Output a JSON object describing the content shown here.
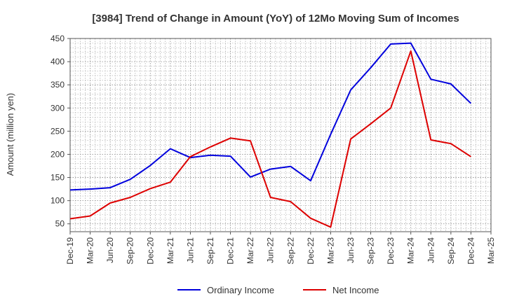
{
  "chart_data": {
    "type": "line",
    "title": "[3984]  Trend of Change in Amount (YoY) of 12Mo Moving Sum of Incomes",
    "xlabel": "",
    "ylabel": "Amount (million yen)",
    "ylim": [
      33,
      450
    ],
    "yticks": [
      50,
      100,
      150,
      200,
      250,
      300,
      350,
      400,
      450
    ],
    "x": [
      "Dec-19",
      "Mar-20",
      "Jun-20",
      "Sep-20",
      "Dec-20",
      "Mar-21",
      "Jun-21",
      "Sep-21",
      "Dec-21",
      "Mar-22",
      "Jun-22",
      "Sep-22",
      "Dec-22",
      "Mar-23",
      "Jun-23",
      "Sep-23",
      "Dec-23",
      "Mar-24",
      "Jun-24",
      "Sep-24",
      "Dec-24",
      "Mar-25"
    ],
    "grid": true,
    "legend_position": "bottom",
    "series": [
      {
        "name": "Ordinary Income",
        "color": "#0000dd",
        "values": [
          123,
          125,
          128,
          146,
          176,
          212,
          193,
          198,
          196,
          151,
          168,
          174,
          143,
          243,
          339,
          387,
          438,
          440,
          362,
          352,
          310,
          null
        ]
      },
      {
        "name": "Net Income",
        "color": "#dd0000",
        "values": [
          61,
          67,
          95,
          107,
          126,
          140,
          195,
          216,
          235,
          229,
          107,
          98,
          62,
          43,
          233,
          266,
          300,
          423,
          231,
          223,
          195,
          null
        ]
      }
    ]
  }
}
